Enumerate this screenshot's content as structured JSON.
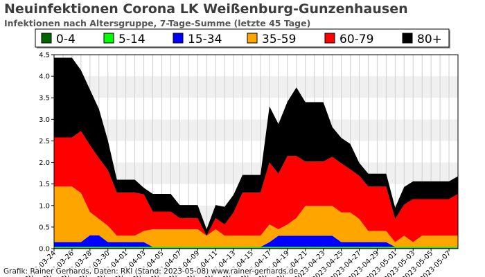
{
  "chart_data": {
    "type": "area",
    "title": "Neuinfektionen Corona LK Weißenburg-Gunzenhausen",
    "subtitle": "Infektionen nach Altersgruppe, 7-Tage-Summe (letzte 45 Tage)",
    "credit": "Grafik: Rainer Gerhards, Daten: RKI (Stand: 2023-05-08) www.rainer-gerhards.de",
    "ylim": [
      0,
      4.5
    ],
    "yticks": [
      "0.0",
      "0.5",
      "1.0",
      "1.5",
      "2.0",
      "2.5",
      "3.0",
      "3.5",
      "4.0",
      "4.5"
    ],
    "x": [
      "2023-03-24",
      "2023-03-25",
      "2023-03-26",
      "2023-03-27",
      "2023-03-28",
      "2023-03-29",
      "2023-03-30",
      "2023-03-31",
      "2023-04-01",
      "2023-04-02",
      "2023-04-03",
      "2023-04-04",
      "2023-04-05",
      "2023-04-06",
      "2023-04-07",
      "2023-04-08",
      "2023-04-09",
      "2023-04-10",
      "2023-04-11",
      "2023-04-12",
      "2023-04-13",
      "2023-04-14",
      "2023-04-15",
      "2023-04-16",
      "2023-04-17",
      "2023-04-18",
      "2023-04-19",
      "2023-04-20",
      "2023-04-21",
      "2023-04-22",
      "2023-04-23",
      "2023-04-24",
      "2023-04-25",
      "2023-04-26",
      "2023-04-27",
      "2023-04-28",
      "2023-04-29",
      "2023-04-30",
      "2023-05-01",
      "2023-05-02",
      "2023-05-03",
      "2023-05-04",
      "2023-05-05",
      "2023-05-06",
      "2023-05-07",
      "2023-05-08"
    ],
    "xtick_labels": [
      "2023-03-24",
      "2023-03-26",
      "2023-03-28",
      "2023-03-30",
      "2023-04-01",
      "2023-04-03",
      "2023-04-05",
      "2023-04-07",
      "2023-04-09",
      "2023-04-11",
      "2023-04-13",
      "2023-04-15",
      "2023-04-17",
      "2023-04-19",
      "2023-04-21",
      "2023-04-23",
      "2023-04-25",
      "2023-04-27",
      "2023-04-29",
      "2023-05-01",
      "2023-05-03",
      "2023-05-05",
      "2023-05-07"
    ],
    "grid": true,
    "legend_position": "top",
    "stacked": true,
    "series": [
      {
        "name": "0-4",
        "color": "#006400",
        "values": [
          0.02,
          0.02,
          0.02,
          0.02,
          0.02,
          0.02,
          0.02,
          0.02,
          0.02,
          0.02,
          0.02,
          0.02,
          0.02,
          0.02,
          0.02,
          0.02,
          0.02,
          0.02,
          0.02,
          0.02,
          0.02,
          0.02,
          0.02,
          0.02,
          0.02,
          0.02,
          0.02,
          0.02,
          0.02,
          0.02,
          0.02,
          0.02,
          0.02,
          0.02,
          0.02,
          0.02,
          0.02,
          0.02,
          0.02,
          0.02,
          0.02,
          0.02,
          0.02,
          0.02,
          0.02,
          0.02
        ]
      },
      {
        "name": "5-14",
        "color": "#00ff00",
        "values": [
          0.02,
          0.02,
          0.02,
          0.02,
          0.02,
          0.02,
          0.02,
          0.02,
          0.02,
          0.02,
          0.02,
          0.02,
          0.02,
          0.02,
          0.02,
          0.02,
          0.02,
          0.02,
          0.02,
          0.02,
          0.02,
          0.02,
          0.02,
          0.02,
          0.02,
          0.02,
          0.02,
          0.02,
          0.02,
          0.02,
          0.02,
          0.02,
          0.02,
          0.02,
          0.02,
          0.02,
          0.02,
          0.02,
          0.02,
          0.02,
          0.02,
          0.02,
          0.02,
          0.02,
          0.02,
          0.02
        ]
      },
      {
        "name": "15-34",
        "color": "#0000ff",
        "values": [
          0.11,
          0.11,
          0.11,
          0.11,
          0.27,
          0.27,
          0.11,
          0.11,
          0.11,
          0.11,
          0.11,
          0.0,
          0.0,
          0.0,
          0.0,
          0.0,
          0.0,
          0.0,
          0.0,
          0.0,
          0.0,
          0.0,
          0.0,
          0.0,
          0.11,
          0.26,
          0.26,
          0.26,
          0.26,
          0.26,
          0.26,
          0.26,
          0.11,
          0.11,
          0.11,
          0.11,
          0.11,
          0.11,
          0.0,
          0.0,
          0.0,
          0.0,
          0.0,
          0.0,
          0.0,
          0.0
        ]
      },
      {
        "name": "35-59",
        "color": "#ffa500",
        "values": [
          1.29,
          1.29,
          1.29,
          1.14,
          0.54,
          0.38,
          0.38,
          0.15,
          0.15,
          0.15,
          0.26,
          0.41,
          0.41,
          0.41,
          0.41,
          0.41,
          0.41,
          0.26,
          0.41,
          0.26,
          0.26,
          0.26,
          0.26,
          0.26,
          0.41,
          0.15,
          0.26,
          0.41,
          0.69,
          0.69,
          0.69,
          0.69,
          0.69,
          0.69,
          0.54,
          0.26,
          0.26,
          0.26,
          0.11,
          0.26,
          0.11,
          0.26,
          0.26,
          0.26,
          0.26,
          0.26
        ]
      },
      {
        "name": "60-79",
        "color": "#ff0000",
        "values": [
          1.14,
          1.14,
          1.14,
          1.44,
          1.55,
          1.41,
          1.29,
          1.0,
          1.0,
          1.0,
          0.85,
          0.41,
          0.41,
          0.41,
          0.26,
          0.26,
          0.26,
          0.0,
          0.26,
          0.26,
          0.54,
          1.0,
          1.0,
          1.0,
          1.44,
          1.29,
          1.59,
          1.44,
          1.03,
          1.03,
          1.03,
          1.14,
          1.14,
          1.0,
          1.0,
          1.03,
          1.03,
          1.03,
          0.54,
          0.72,
          1.0,
          0.85,
          0.85,
          0.85,
          0.85,
          0.97
        ]
      },
      {
        "name": "80+",
        "color": "#000000",
        "values": [
          1.85,
          1.85,
          1.85,
          1.41,
          1.29,
          1.14,
          0.69,
          0.3,
          0.3,
          0.3,
          0.15,
          0.41,
          0.41,
          0.41,
          0.3,
          0.3,
          0.3,
          0.15,
          0.3,
          0.41,
          0.41,
          0.41,
          0.41,
          0.41,
          1.3,
          1.15,
          1.26,
          1.59,
          1.38,
          1.38,
          1.38,
          0.69,
          0.59,
          0.59,
          0.3,
          0.3,
          0.3,
          0.3,
          0.26,
          0.41,
          0.41,
          0.41,
          0.41,
          0.41,
          0.41,
          0.41
        ]
      }
    ]
  }
}
